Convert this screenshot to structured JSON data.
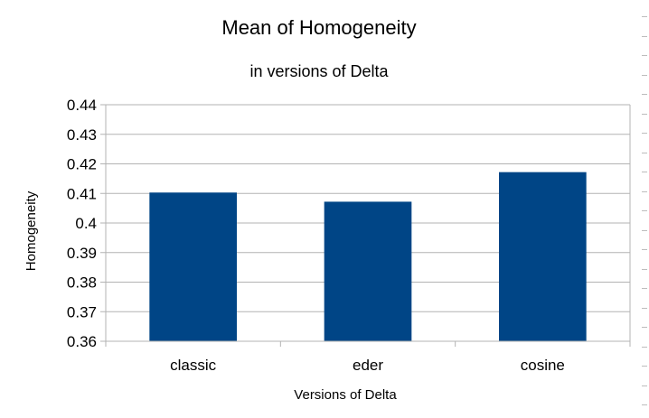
{
  "chart_data": {
    "type": "bar",
    "title": "Mean of Homogeneity",
    "subtitle": "in versions of Delta",
    "xlabel": "Versions of Delta",
    "ylabel": "Homogeneity",
    "categories": [
      "classic",
      "eder",
      "cosine"
    ],
    "values": [
      0.4103,
      0.4072,
      0.4172
    ],
    "ylim": [
      0.36,
      0.44
    ],
    "yticks": [
      0.36,
      0.37,
      0.38,
      0.39,
      0.4,
      0.41,
      0.42,
      0.43,
      0.44
    ],
    "ytick_labels": [
      "0.36",
      "0.37",
      "0.38",
      "0.39",
      "0.4",
      "0.41",
      "0.42",
      "0.43",
      "0.44"
    ],
    "grid": true,
    "legend": "none",
    "bar_color": "#004586",
    "grid_color": "#b3b3b3"
  }
}
